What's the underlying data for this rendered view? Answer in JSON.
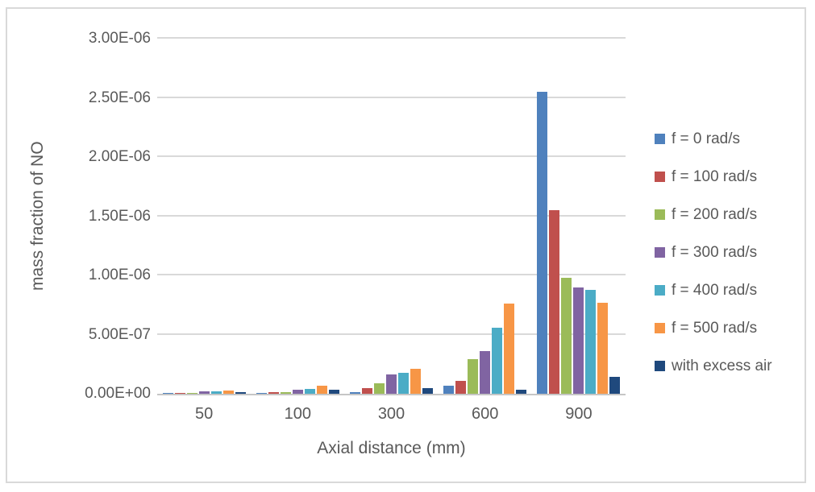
{
  "chart_data": {
    "type": "bar",
    "title": "",
    "xlabel": "Axial distance (mm)",
    "ylabel": "mass fraction of NO",
    "categories": [
      "50",
      "100",
      "300",
      "600",
      "900"
    ],
    "series": [
      {
        "name": "f = 0 rad/s",
        "color": "#4F81BD",
        "values": [
          5e-09,
          8e-09,
          1.5e-08,
          6.5e-08,
          2.55e-06
        ]
      },
      {
        "name": "f = 100 rad/s",
        "color": "#C0504D",
        "values": [
          1e-08,
          1.5e-08,
          5e-08,
          1.1e-07,
          1.55e-06
        ]
      },
      {
        "name": "f = 200 rad/s",
        "color": "#9BBB59",
        "values": [
          8e-09,
          1.5e-08,
          9e-08,
          2.95e-07,
          9.8e-07
        ]
      },
      {
        "name": "f = 300 rad/s",
        "color": "#8064A2",
        "values": [
          2e-08,
          3.5e-08,
          1.65e-07,
          3.6e-07,
          9e-07
        ]
      },
      {
        "name": "f = 400 rad/s",
        "color": "#4BACC6",
        "values": [
          1.8e-08,
          4e-08,
          1.8e-07,
          5.6e-07,
          8.8e-07
        ]
      },
      {
        "name": "f = 500 rad/s",
        "color": "#F79646",
        "values": [
          2.5e-08,
          6.5e-08,
          2.1e-07,
          7.6e-07,
          7.7e-07
        ]
      },
      {
        "name": "with excess air",
        "color": "#1F497D",
        "values": [
          1.2e-08,
          3.5e-08,
          4.5e-08,
          3.5e-08,
          1.4e-07
        ]
      }
    ],
    "ylim": [
      0,
      3e-06
    ],
    "yticks": [
      "0.00E+00",
      "5.00E-07",
      "1.00E-06",
      "1.50E-06",
      "2.00E-06",
      "2.50E-06",
      "3.00E-06"
    ],
    "grid": "horizontal",
    "legend_position": "right"
  },
  "colors": {
    "gridline": "#D9D9D9",
    "axis_line": "#C6C6C6",
    "text": "#595959",
    "frame_border": "#D9D9D9",
    "background": "#FFFFFF"
  }
}
